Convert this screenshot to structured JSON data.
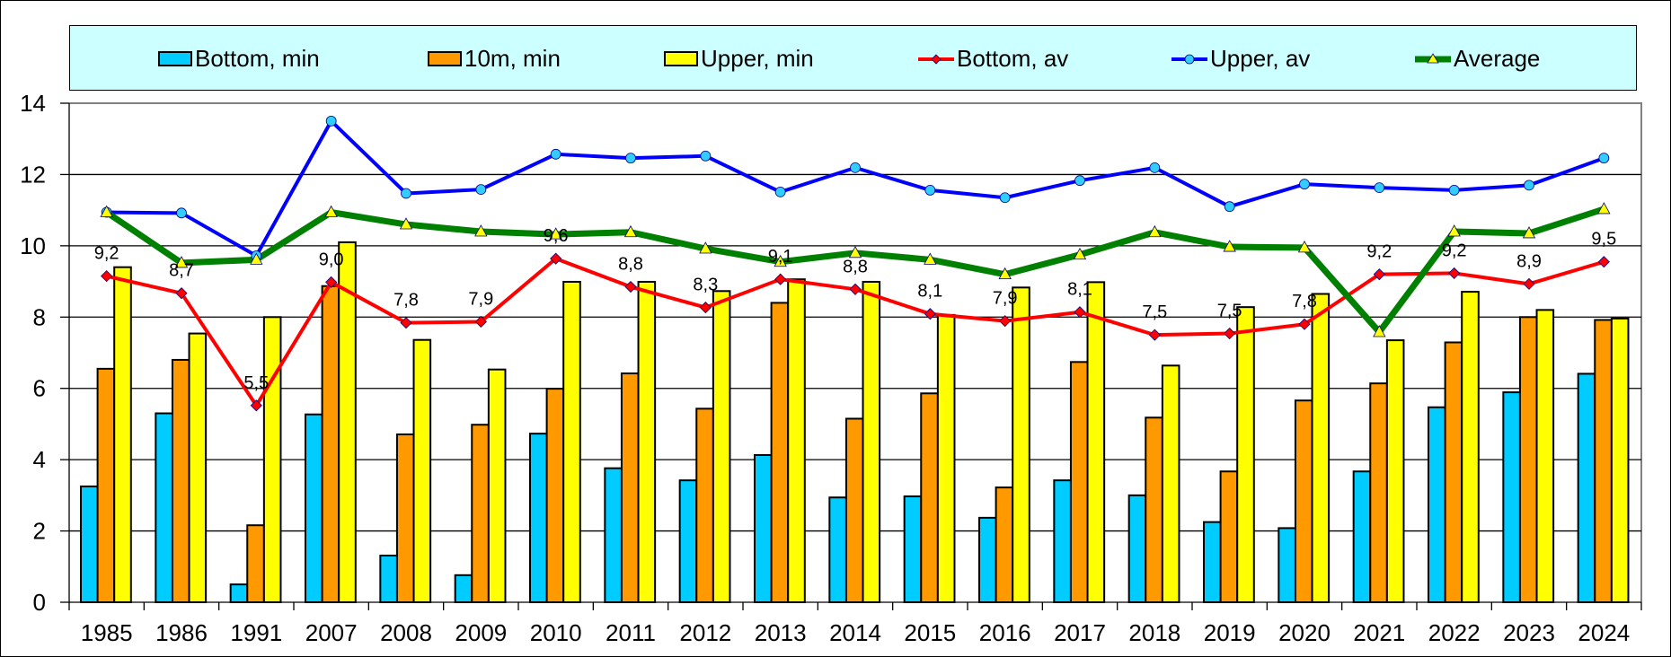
{
  "chart_data": {
    "type": "bar+line",
    "title": "",
    "xlabel": "",
    "ylabel": "",
    "ylim": [
      0,
      14
    ],
    "yticks": [
      "0",
      "2",
      "4",
      "6",
      "8",
      "10",
      "12",
      "14"
    ],
    "grid": true,
    "legend_position": "top",
    "categories": [
      "1985",
      "1986",
      "1991",
      "2007",
      "2008",
      "2009",
      "2010",
      "2011",
      "2012",
      "2013",
      "2014",
      "2015",
      "2016",
      "2017",
      "2018",
      "2019",
      "2020",
      "2021",
      "2022",
      "2023",
      "2024"
    ],
    "bar_series": [
      {
        "name": "Bottom, min",
        "color": "#00ccff",
        "values": [
          3.25,
          5.3,
          0.5,
          5.27,
          1.31,
          0.76,
          4.73,
          3.76,
          3.42,
          4.13,
          2.94,
          2.97,
          2.37,
          3.42,
          3.0,
          2.25,
          2.08,
          3.67,
          5.47,
          5.89,
          6.41
        ]
      },
      {
        "name": "10m, min",
        "color": "#ff9900",
        "values": [
          6.55,
          6.8,
          2.16,
          8.87,
          4.71,
          4.98,
          5.99,
          6.42,
          5.43,
          8.4,
          5.15,
          5.86,
          3.22,
          6.74,
          5.18,
          3.67,
          5.66,
          6.14,
          7.29,
          8.0,
          7.92
        ]
      },
      {
        "name": "Upper, min",
        "color": "#ffff00",
        "values": [
          9.4,
          7.54,
          8.0,
          10.1,
          7.36,
          6.53,
          8.99,
          8.99,
          8.73,
          9.06,
          8.99,
          8.06,
          8.83,
          8.98,
          6.64,
          8.28,
          8.65,
          7.35,
          8.71,
          8.2,
          7.96
        ]
      }
    ],
    "line_series": [
      {
        "name": "Bottom, av",
        "color": "#ff0000",
        "marker": "diamond",
        "marker_fill": "#ff0000",
        "values": [
          9.15,
          8.67,
          5.52,
          8.98,
          7.84,
          7.87,
          9.64,
          8.85,
          8.27,
          9.06,
          8.78,
          8.09,
          7.89,
          8.14,
          7.5,
          7.54,
          7.8,
          9.2,
          9.23,
          8.93,
          9.55
        ],
        "labels": [
          "9,2",
          "8,7",
          "5,5",
          "9,0",
          "7,8",
          "7,9",
          "9,6",
          "8,8",
          "8,3",
          "9,1",
          "8,8",
          "8,1",
          "7,9",
          "8,1",
          "7,5",
          "7,5",
          "7,8",
          "9,2",
          "9,2",
          "8,9",
          "9,5"
        ]
      },
      {
        "name": "Upper, av",
        "color": "#0000ff",
        "marker": "circle",
        "marker_fill": "#33ccff",
        "values": [
          10.94,
          10.92,
          9.72,
          13.5,
          11.47,
          11.58,
          12.57,
          12.46,
          12.52,
          11.51,
          12.19,
          11.56,
          11.35,
          11.83,
          12.19,
          11.1,
          11.73,
          11.63,
          11.56,
          11.7,
          12.46
        ]
      },
      {
        "name": "Average",
        "color": "#008000",
        "marker": "triangle",
        "marker_fill": "#ffff00",
        "values": [
          10.94,
          9.52,
          9.61,
          10.94,
          10.6,
          10.4,
          10.32,
          10.38,
          9.92,
          9.55,
          9.8,
          9.61,
          9.2,
          9.75,
          10.38,
          9.97,
          9.95,
          7.58,
          10.4,
          10.35,
          11.03
        ]
      }
    ]
  }
}
